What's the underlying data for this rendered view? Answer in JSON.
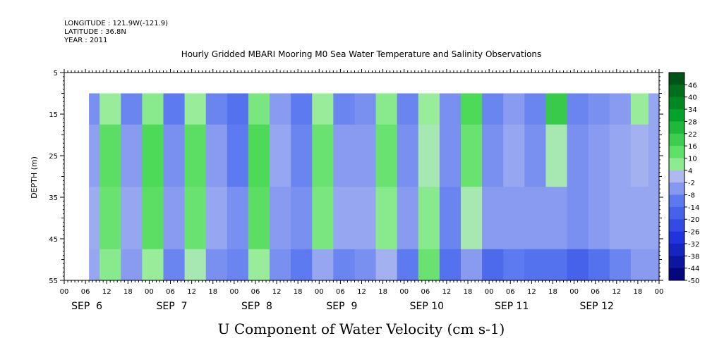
{
  "header": {
    "longitude": "LONGITUDE : 121.9W(-121.9)",
    "latitude": "LATITUDE : 36.8N",
    "year": "YEAR : 2011"
  },
  "chart_data": {
    "type": "heatmap",
    "title": "Hourly Gridded MBARI Mooring M0 Sea Water Temperature and Salinity Observations",
    "xlabel": "U Component of Water Velocity (cm s-1)",
    "ylabel": "DEPTH (m)",
    "x_hour_ticks": [
      "00",
      "06",
      "12",
      "18",
      "00",
      "06",
      "12",
      "18",
      "00",
      "06",
      "12",
      "18",
      "00",
      "06",
      "12",
      "18",
      "00",
      "06",
      "12",
      "18",
      "00",
      "06",
      "12",
      "18",
      "00",
      "06",
      "12",
      "18",
      "00"
    ],
    "x_day_labels": [
      "SEP  6",
      "SEP  7",
      "SEP  8",
      "SEP  9",
      "SEP 10",
      "SEP 11",
      "SEP 12"
    ],
    "x_range_hours": [
      0,
      168
    ],
    "data_start_hour": 7,
    "y_ticks": [
      "5",
      "15",
      "25",
      "35",
      "45",
      "55"
    ],
    "y_range_m": [
      5,
      55
    ],
    "data_depth_range_m": [
      10,
      55
    ],
    "y_inverted": true,
    "colorbar": {
      "labels": [
        "46",
        "40",
        "34",
        "28",
        "22",
        "16",
        "10",
        "4",
        "-2",
        "-8",
        "-14",
        "-20",
        "-26",
        "-32",
        "-38",
        "-44",
        "-50"
      ],
      "min": -50,
      "max": 49
    },
    "colors": {
      "strong_positive": "#00a020",
      "positive": "#8ff08f",
      "near_zero": "#b0b8f0",
      "negative": "#5070f0",
      "strong_negative": "#2020c0"
    },
    "u_velocity_by_time": {
      "unit": "cm s-1",
      "time_hours": [
        7,
        13,
        19,
        25,
        31,
        37,
        43,
        49,
        55,
        61,
        67,
        73,
        79,
        85,
        91,
        97,
        103,
        109,
        115,
        121,
        127,
        133,
        139,
        145,
        151,
        157,
        163,
        167
      ],
      "depth_m": [
        10,
        25,
        40,
        55
      ],
      "values": [
        [
          -8,
          -5,
          -3,
          -4
        ],
        [
          4,
          12,
          10,
          6
        ],
        [
          -10,
          -6,
          -4,
          -6
        ],
        [
          6,
          14,
          12,
          4
        ],
        [
          -12,
          -8,
          -6,
          -10
        ],
        [
          4,
          12,
          10,
          2
        ],
        [
          -10,
          -6,
          -4,
          -8
        ],
        [
          -14,
          -12,
          -8,
          -10
        ],
        [
          8,
          14,
          12,
          4
        ],
        [
          -6,
          -4,
          -6,
          -8
        ],
        [
          -12,
          -10,
          -8,
          -12
        ],
        [
          4,
          10,
          8,
          -4
        ],
        [
          -10,
          -6,
          -4,
          -10
        ],
        [
          -8,
          -6,
          -4,
          -8
        ],
        [
          6,
          10,
          6,
          -2
        ],
        [
          -10,
          -8,
          -6,
          -12
        ],
        [
          4,
          2,
          6,
          10
        ],
        [
          -8,
          -8,
          -10,
          -14
        ],
        [
          14,
          10,
          2,
          -6
        ],
        [
          -10,
          -8,
          -6,
          -16
        ],
        [
          -6,
          -4,
          -6,
          -12
        ],
        [
          -10,
          -8,
          -6,
          -14
        ],
        [
          18,
          2,
          -6,
          -14
        ],
        [
          -10,
          -8,
          -8,
          -18
        ],
        [
          -8,
          -6,
          -6,
          -14
        ],
        [
          -6,
          -4,
          -4,
          -10
        ],
        [
          4,
          -2,
          -4,
          -6
        ],
        [
          -4,
          -4,
          -4,
          -6
        ]
      ]
    }
  }
}
